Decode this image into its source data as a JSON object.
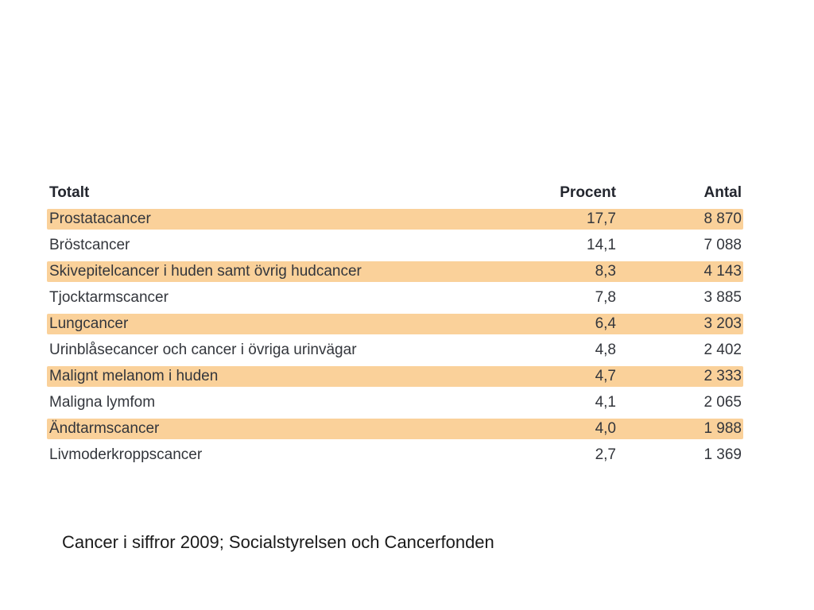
{
  "table": {
    "columns": [
      {
        "label": "Totalt"
      },
      {
        "label": "Procent"
      },
      {
        "label": "Antal"
      }
    ],
    "rows": [
      {
        "name": "Prostatacancer",
        "procent": "17,7",
        "antal": "8 870",
        "highlight": true
      },
      {
        "name": "Bröstcancer",
        "procent": "14,1",
        "antal": "7 088",
        "highlight": false
      },
      {
        "name": "Skivepitelcancer i huden samt övrig hudcancer",
        "procent": "8,3",
        "antal": "4 143",
        "highlight": true
      },
      {
        "name": "Tjocktarmscancer",
        "procent": "7,8",
        "antal": "3 885",
        "highlight": false
      },
      {
        "name": "Lungcancer",
        "procent": "6,4",
        "antal": "3 203",
        "highlight": true
      },
      {
        "name": "Urinblåsecancer och cancer i övriga urinvägar",
        "procent": "4,8",
        "antal": "2 402",
        "highlight": false
      },
      {
        "name": "Malignt melanom i huden",
        "procent": "4,7",
        "antal": "2 333",
        "highlight": true
      },
      {
        "name": "Maligna lymfom",
        "procent": "4,1",
        "antal": "2 065",
        "highlight": false
      },
      {
        "name": "Ändtarmscancer",
        "procent": "4,0",
        "antal": "1 988",
        "highlight": true
      },
      {
        "name": "Livmoderkroppscancer",
        "procent": "2,7",
        "antal": "1 369",
        "highlight": false
      }
    ]
  },
  "footer": {
    "citation": "Cancer i siffror 2009; Socialstyrelsen och Cancerfonden"
  },
  "colors": {
    "row_highlight": "#FAD19A",
    "body_text": "#33363C",
    "header_text": "#23262E"
  }
}
